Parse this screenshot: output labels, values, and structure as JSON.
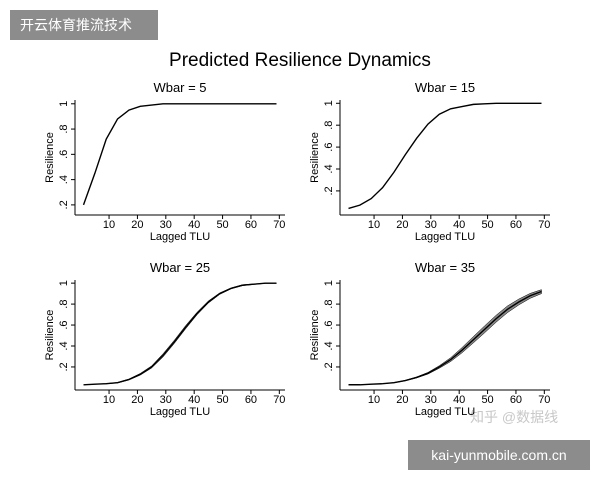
{
  "title": "Predicted Resilience Dynamics",
  "watermarks": [
    "开云体育推流技术",
    "知乎 @数据线",
    "kai-yunmobile.com.cn"
  ],
  "chart_data": [
    {
      "type": "line",
      "title": "Wbar = 5",
      "xlabel": "Lagged TLU",
      "ylabel": "Resilience",
      "color": "#000000",
      "band_color": "#888888",
      "x": [
        1,
        5,
        9,
        13,
        17,
        21,
        25,
        29,
        33,
        37,
        41,
        45,
        49,
        53,
        57,
        61,
        65,
        69
      ],
      "values": [
        0.2,
        0.45,
        0.72,
        0.88,
        0.95,
        0.98,
        0.99,
        1,
        1,
        1,
        1,
        1,
        1,
        1,
        1,
        1,
        1,
        1
      ],
      "xlim": [
        -2,
        72
      ],
      "xticks": [
        10,
        20,
        30,
        40,
        50,
        60,
        70
      ],
      "ylim": [
        0.12,
        1.03
      ],
      "yticks": [
        {
          "value": 0.2,
          "label": ".2"
        },
        {
          "value": 0.4,
          "label": ".4"
        },
        {
          "value": 0.6,
          "label": ".6"
        },
        {
          "value": 0.8,
          "label": ".8"
        },
        1
      ]
    },
    {
      "type": "line",
      "title": "Wbar = 15",
      "xlabel": "Lagged TLU",
      "ylabel": "Resilience",
      "color": "#000000",
      "band_color": "#888888",
      "x": [
        1,
        5,
        9,
        13,
        17,
        21,
        25,
        29,
        33,
        37,
        41,
        45,
        49,
        53,
        57,
        61,
        65,
        69
      ],
      "values": [
        0.04,
        0.07,
        0.13,
        0.23,
        0.37,
        0.53,
        0.68,
        0.81,
        0.9,
        0.95,
        0.97,
        0.99,
        0.995,
        1,
        1,
        1,
        1,
        1
      ],
      "xlim": [
        -2,
        72
      ],
      "xticks": [
        10,
        20,
        30,
        40,
        50,
        60,
        70
      ],
      "ylim": [
        -0.02,
        1.03
      ],
      "yticks": [
        {
          "value": 0.2,
          "label": ".2"
        },
        {
          "value": 0.4,
          "label": ".4"
        },
        {
          "value": 0.6,
          "label": ".6"
        },
        {
          "value": 0.8,
          "label": ".8"
        },
        1
      ]
    },
    {
      "type": "line",
      "title": "Wbar = 25",
      "xlabel": "Lagged TLU",
      "ylabel": "Resilience",
      "color": "#000000",
      "band_color": "#888888",
      "x": [
        1,
        5,
        9,
        13,
        17,
        21,
        25,
        29,
        33,
        37,
        41,
        45,
        49,
        53,
        57,
        61,
        65,
        69
      ],
      "values": [
        0.03,
        0.035,
        0.04,
        0.05,
        0.08,
        0.13,
        0.2,
        0.31,
        0.44,
        0.58,
        0.71,
        0.82,
        0.9,
        0.95,
        0.98,
        0.99,
        1,
        1
      ],
      "ci_lower": [
        0.03,
        0.034,
        0.038,
        0.047,
        0.075,
        0.122,
        0.19,
        0.295,
        0.425,
        0.565,
        0.698,
        0.81,
        0.893,
        0.945,
        0.975,
        0.987,
        0.997,
        0.998
      ],
      "ci_upper": [
        0.03,
        0.036,
        0.042,
        0.053,
        0.085,
        0.138,
        0.21,
        0.325,
        0.455,
        0.595,
        0.722,
        0.83,
        0.907,
        0.955,
        0.985,
        0.993,
        1,
        1
      ],
      "xlim": [
        -2,
        72
      ],
      "xticks": [
        10,
        20,
        30,
        40,
        50,
        60,
        70
      ],
      "ylim": [
        -0.02,
        1.03
      ],
      "yticks": [
        {
          "value": 0.2,
          "label": ".2"
        },
        {
          "value": 0.4,
          "label": ".4"
        },
        {
          "value": 0.6,
          "label": ".6"
        },
        {
          "value": 0.8,
          "label": ".8"
        },
        1
      ]
    },
    {
      "type": "line",
      "title": "Wbar = 35",
      "xlabel": "Lagged TLU",
      "ylabel": "Resilience",
      "color": "#000000",
      "band_color": "#888888",
      "x": [
        1,
        5,
        9,
        13,
        17,
        21,
        25,
        29,
        33,
        37,
        41,
        45,
        49,
        53,
        57,
        61,
        65,
        69
      ],
      "values": [
        0.03,
        0.03,
        0.035,
        0.04,
        0.05,
        0.07,
        0.1,
        0.14,
        0.2,
        0.27,
        0.36,
        0.46,
        0.56,
        0.66,
        0.75,
        0.82,
        0.88,
        0.92
      ],
      "ci_lower": [
        0.03,
        0.03,
        0.034,
        0.039,
        0.048,
        0.067,
        0.095,
        0.132,
        0.188,
        0.252,
        0.335,
        0.43,
        0.527,
        0.627,
        0.718,
        0.792,
        0.855,
        0.9
      ],
      "ci_upper": [
        0.03,
        0.03,
        0.036,
        0.041,
        0.052,
        0.073,
        0.105,
        0.148,
        0.212,
        0.288,
        0.385,
        0.49,
        0.593,
        0.693,
        0.782,
        0.848,
        0.902,
        0.938
      ],
      "xlim": [
        -2,
        72
      ],
      "xticks": [
        10,
        20,
        30,
        40,
        50,
        60,
        70
      ],
      "ylim": [
        -0.02,
        1.03
      ],
      "yticks": [
        {
          "value": 0.2,
          "label": ".2"
        },
        {
          "value": 0.4,
          "label": ".4"
        },
        {
          "value": 0.6,
          "label": ".6"
        },
        {
          "value": 0.8,
          "label": ".8"
        },
        1
      ]
    }
  ]
}
